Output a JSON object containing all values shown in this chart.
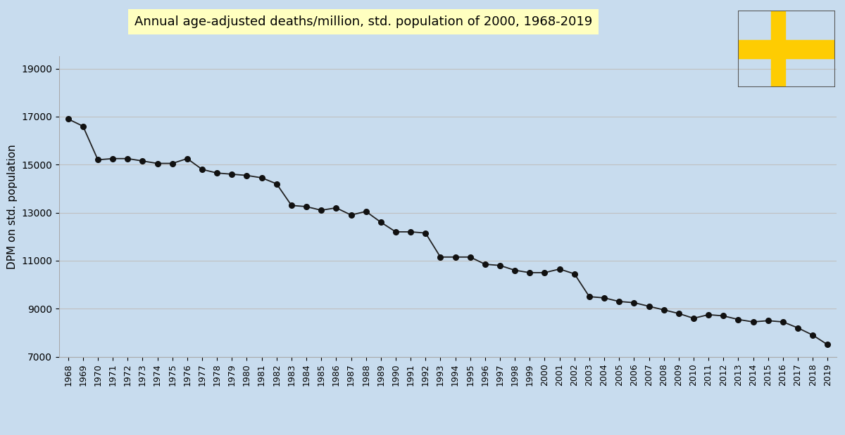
{
  "title": "Annual age-adjusted deaths/million, std. population of 2000, 1968-2019",
  "ylabel": "DPM on std. population",
  "background_color": "#c8dcee",
  "title_bg_color": "#ffffc0",
  "years": [
    1968,
    1969,
    1970,
    1971,
    1972,
    1973,
    1974,
    1975,
    1976,
    1977,
    1978,
    1979,
    1980,
    1981,
    1982,
    1983,
    1984,
    1985,
    1986,
    1987,
    1988,
    1989,
    1990,
    1991,
    1992,
    1993,
    1994,
    1995,
    1996,
    1997,
    1998,
    1999,
    2000,
    2001,
    2002,
    2003,
    2004,
    2005,
    2006,
    2007,
    2008,
    2009,
    2010,
    2011,
    2012,
    2013,
    2014,
    2015,
    2016,
    2017,
    2018,
    2019
  ],
  "values": [
    16900,
    16600,
    15200,
    15250,
    15250,
    15150,
    15050,
    15050,
    15250,
    14800,
    14650,
    14600,
    14550,
    14450,
    14200,
    13300,
    13250,
    13100,
    13200,
    12900,
    13050,
    12600,
    12200,
    12200,
    12150,
    11150,
    11150,
    11150,
    10850,
    10800,
    10600,
    10500,
    10500,
    10650,
    10450,
    9500,
    9450,
    9300,
    9250,
    9100,
    8950,
    8800,
    8600,
    8750,
    8700,
    8550,
    8450,
    8500,
    8450,
    8200,
    7900,
    7500
  ],
  "ylim": [
    7000,
    19500
  ],
  "yticks": [
    7000,
    9000,
    11000,
    13000,
    15000,
    17000,
    19000
  ],
  "line_color": "#222222",
  "marker_color": "#111111",
  "grid_color": "#c0c0c0",
  "flag_blue": "#006AA7",
  "flag_yellow": "#FECC02"
}
